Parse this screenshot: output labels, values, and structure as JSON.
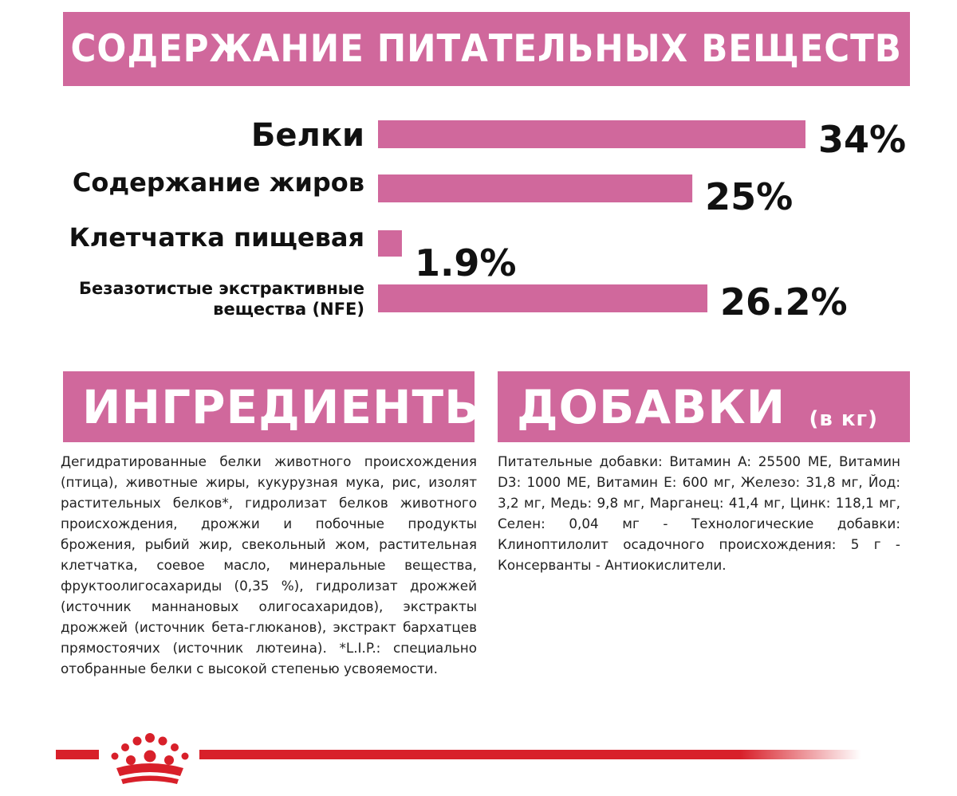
{
  "header": {
    "title": "СОДЕРЖАНИЕ ПИТАТЕЛЬНЫХ ВЕЩЕСТВ"
  },
  "chart_data": {
    "type": "bar",
    "orientation": "horizontal",
    "categories": [
      "Белки",
      "Содержание жиров",
      "Клетчатка пищевая",
      "Безазотистые экстрактивные вещества (NFE)"
    ],
    "category_lines": [
      [
        "Белки"
      ],
      [
        "Содержание жиров"
      ],
      [
        "Клетчатка пищевая"
      ],
      [
        "Безазотистые экстрактивные",
        "вещества (NFE)"
      ]
    ],
    "values": [
      34,
      25,
      1.9,
      26.2
    ],
    "value_labels": [
      "34%",
      "25%",
      "1.9%",
      "26.2%"
    ],
    "unit": "%",
    "xlim": [
      0,
      34
    ],
    "grid": false,
    "bar_color": "#d0689c"
  },
  "ingredients": {
    "title": "ИНГРЕДИЕНТЫ",
    "text": "Дегидратированные белки животного происхождения (птица), животные жиры, кукурузная мука, рис, изолят растительных белков*, гидролизат белков животного происхождения, дрожжи и побочные продукты брожения, рыбий жир, свекольный жом, растительная клетчатка, соевое масло, минеральные вещества, фруктоолигосахариды (0,35 %), гидролизат дрожжей (источник маннановых олигосахаридов), экстракты дрожжей (источник бета-глюканов), экстракт бархатцев прямостоячих (источник лютеина). *L.I.P.: специально отобранные белки с высокой степенью усвояемости."
  },
  "additives": {
    "title": "ДОБАВКИ",
    "unit": "(в кг)",
    "text": "Питательные добавки: Витамин A: 25500 ME, Витамин D3: 1000 ME, Витамин E: 600 мг, Железо: 31,8 мг, Йод: 3,2 мг, Медь: 9,8 мг, Марганец: 41,4 мг, Цинк: 118,1 мг, Селен: 0,04 мг - Технологические добавки: Клиноптилолит осадочного происхождения: 5 г - Консерванты - Антиокислители."
  },
  "colors": {
    "accent": "#d0689c",
    "brand_red": "#d8202a"
  },
  "footer": {
    "logo_icon": "crown-icon"
  }
}
